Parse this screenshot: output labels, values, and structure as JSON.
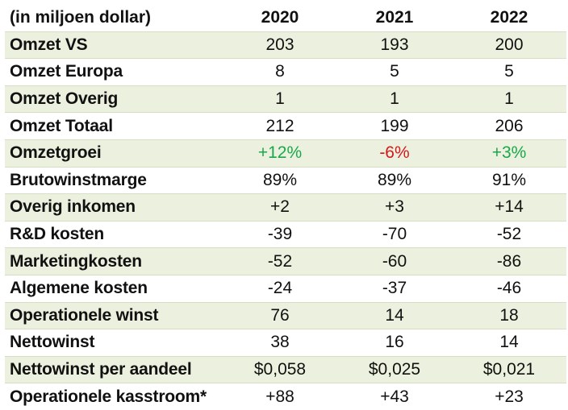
{
  "header": {
    "label": "(in miljoen dollar)",
    "years": [
      "2020",
      "2021",
      "2022"
    ]
  },
  "rows": [
    {
      "label": "Omzet VS",
      "values": [
        "203",
        "193",
        "200"
      ],
      "shaded": true
    },
    {
      "label": "Omzet Europa",
      "values": [
        "8",
        "5",
        "5"
      ],
      "shaded": false
    },
    {
      "label": "Omzet Overig",
      "values": [
        "1",
        "1",
        "1"
      ],
      "shaded": true
    },
    {
      "label": "Omzet Totaal",
      "values": [
        "212",
        "199",
        "206"
      ],
      "shaded": false
    },
    {
      "label": "Omzetgroei",
      "values": [
        "+12%",
        "-6%",
        "+3%"
      ],
      "shaded": true,
      "colors": [
        "#1aa84a",
        "#d11a1a",
        "#1aa84a"
      ]
    },
    {
      "label": "Brutowinstmarge",
      "values": [
        "89%",
        "89%",
        "91%"
      ],
      "shaded": false
    },
    {
      "label": "Overig inkomen",
      "values": [
        "+2",
        "+3",
        "+14"
      ],
      "shaded": true
    },
    {
      "label": "R&D kosten",
      "values": [
        "-39",
        "-70",
        "-52"
      ],
      "shaded": false
    },
    {
      "label": "Marketingkosten",
      "values": [
        "-52",
        "-60",
        "-86"
      ],
      "shaded": true
    },
    {
      "label": "Algemene kosten",
      "values": [
        "-24",
        "-37",
        "-46"
      ],
      "shaded": false
    },
    {
      "label": "Operationele winst",
      "values": [
        "76",
        "14",
        "18"
      ],
      "shaded": true
    },
    {
      "label": "Nettowinst",
      "values": [
        "38",
        "16",
        "14"
      ],
      "shaded": false
    },
    {
      "label": "Nettowinst per aandeel",
      "values": [
        "$0,058",
        "$0,025",
        "$0,021"
      ],
      "shaded": true
    },
    {
      "label": "Operationele kasstroom*",
      "values": [
        "+88",
        "+43",
        "+23"
      ],
      "shaded": false
    }
  ],
  "colors": {
    "row_shade": "#ebf1de",
    "positive": "#1aa84a",
    "negative": "#d11a1a"
  }
}
